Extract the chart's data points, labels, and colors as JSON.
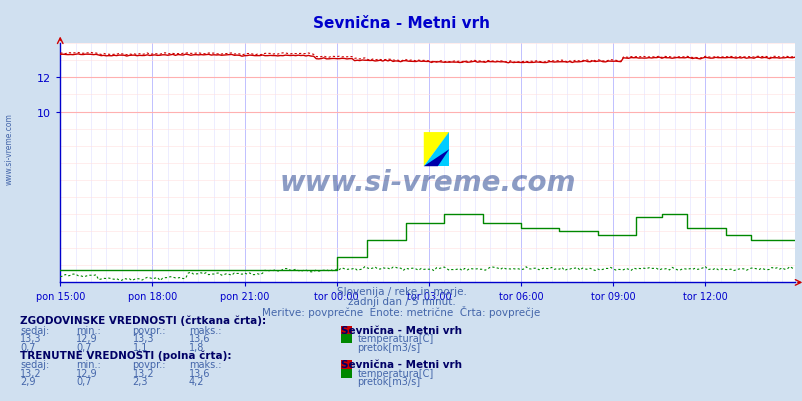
{
  "title": "Sevnična - Metni vrh",
  "subtitle1": "Slovenija / reke in morje.",
  "subtitle2": "zadnji dan / 5 minut.",
  "subtitle3": "Meritve: povprečne  Enote: metrične  Črta: povprečje",
  "bg_color": "#d0e0f0",
  "plot_bg_color": "#ffffff",
  "grid_color_major": "#ffb0b0",
  "grid_color_minor": "#ffe0e0",
  "grid_color_major_v": "#c0c0ff",
  "grid_color_minor_v": "#e0e0ff",
  "x_ticks": [
    "pon 15:00",
    "pon 18:00",
    "pon 21:00",
    "tor 00:00",
    "tor 03:00",
    "tor 06:00",
    "tor 09:00",
    "tor 12:00"
  ],
  "x_tick_positions": [
    0,
    36,
    72,
    108,
    144,
    180,
    216,
    252
  ],
  "n_points": 288,
  "y_min": 0,
  "y_max": 14,
  "y_ticks": [
    10,
    12
  ],
  "temp_solid_color": "#cc0000",
  "temp_dashed_color": "#cc0000",
  "flow_solid_color": "#008800",
  "flow_dashed_color": "#008800",
  "watermark": "www.si-vreme.com",
  "watermark_color": "#1a3a8a",
  "hist_label": "ZGODOVINSKE VREDNOSTI (črtkana črta):",
  "curr_label": "TRENUTNE VREDNOSTI (polna črta):",
  "col_headers": [
    "sedaj:",
    "min.:",
    "povpr.:",
    "maks.:"
  ],
  "station_label": "Sevnična - Metni vrh",
  "hist_temp_vals": [
    "13,3",
    "12,9",
    "13,3",
    "13,6"
  ],
  "hist_flow_vals": [
    "0,7",
    "0,7",
    "1,1",
    "1,8"
  ],
  "curr_temp_vals": [
    "13,2",
    "12,9",
    "13,2",
    "13,6"
  ],
  "curr_flow_vals": [
    "2,9",
    "0,7",
    "2,3",
    "4,2"
  ],
  "temp_label": "temperatura[C]",
  "flow_label": "pretok[m3/s]",
  "title_color": "#0000cc",
  "subtitle_color": "#4466aa",
  "table_header_color": "#000066",
  "table_val_color": "#4466aa",
  "sidebar_text": "www.si-vreme.com",
  "sidebar_color": "#4466aa",
  "axis_color": "#0000cc",
  "temp_swatch_color": "#cc0000",
  "flow_swatch_color": "#008800"
}
